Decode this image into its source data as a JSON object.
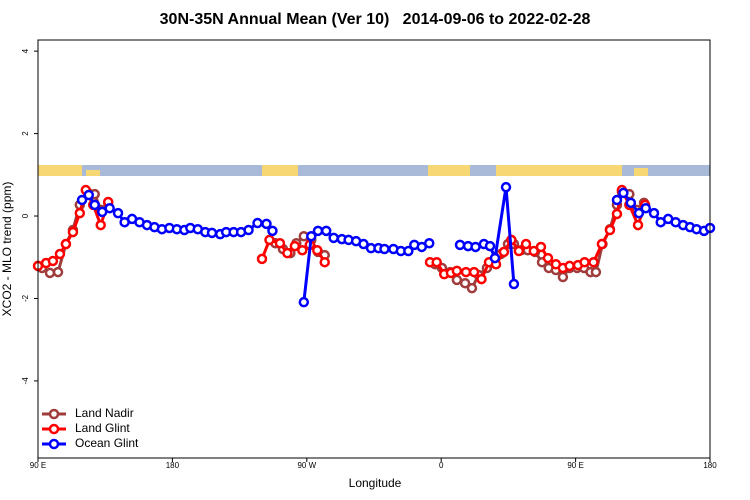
{
  "chart_data": {
    "type": "line",
    "title": "30N-35N Annual Mean (Ver 10)   2014-09-06 to 2022-02-28",
    "x_label": "Longitude",
    "y_label": "XCO2 - MLO trend (ppm)",
    "xlim": [
      90,
      540
    ],
    "xticks": [
      {
        "value": 90,
        "label": "90 E"
      },
      {
        "value": 180,
        "label": "180"
      },
      {
        "value": 270,
        "label": "90 W"
      },
      {
        "value": 360,
        "label": "0"
      },
      {
        "value": 450,
        "label": "90 E"
      },
      {
        "value": 540,
        "label": "180"
      }
    ],
    "ylim": [
      -5.87,
      4.27
    ],
    "yticks": [
      -4,
      -2,
      0,
      2,
      4
    ],
    "grid": false,
    "legend": "bottomleft",
    "series": [
      {
        "name": "Land Nadir",
        "color": "#a03c3c",
        "x": [
          92.7,
          98,
          103.4,
          108.7,
          113.4,
          118,
          123.5,
          128,
          132,
          137,
          null,
          249,
          254,
          259,
          263,
          268,
          273,
          277.5,
          282,
          null,
          356,
          360.5,
          366,
          370.5,
          376,
          380.6,
          385,
          390.6,
          394.7,
          400,
          404.7,
          408.7,
          413.4,
          418,
          422.8,
          427.5,
          432,
          436.8,
          441.5,
          446,
          451,
          455.6,
          460,
          463.6,
          468,
          473,
          477.7,
          481,
          486,
          491,
          495.8
        ],
        "values": [
          -1.26,
          -1.38,
          -1.36,
          -0.68,
          -0.34,
          0.27,
          0.56,
          0.53,
          0.15,
          0.32,
          null,
          -0.66,
          -0.8,
          -0.9,
          -0.66,
          -0.49,
          -0.58,
          -0.87,
          -0.95,
          null,
          -1.17,
          -1.26,
          -1.36,
          -1.55,
          -1.63,
          -1.75,
          -1.43,
          -1.26,
          -1.12,
          -0.92,
          -0.68,
          -0.68,
          -0.83,
          -0.83,
          -0.87,
          -1.12,
          -1.26,
          -1.31,
          -1.48,
          -1.26,
          -1.26,
          -1.26,
          -1.36,
          -1.36,
          -0.68,
          -0.32,
          0.27,
          0.58,
          0.53,
          0.15,
          0.32
        ]
      },
      {
        "name": "Land Glint",
        "color": "#ff0000",
        "x": [
          90,
          95.4,
          100,
          104.7,
          108.7,
          113.4,
          118,
          122,
          127,
          132,
          137,
          null,
          240,
          245,
          252,
          257,
          262,
          267,
          272,
          277,
          282,
          null,
          352.5,
          357,
          362,
          366.5,
          370.5,
          376.6,
          382,
          387,
          392,
          396.7,
          402,
          407,
          412,
          416.8,
          422,
          426.8,
          431.5,
          436.8,
          441.5,
          446,
          451.6,
          456,
          462,
          467.6,
          473,
          477.7,
          481,
          486,
          491.8,
          496.5
        ],
        "values": [
          -1.21,
          -1.14,
          -1.09,
          -0.92,
          -0.68,
          -0.39,
          0.07,
          0.63,
          0.27,
          -0.22,
          0.34,
          null,
          -1.04,
          -0.58,
          -0.66,
          -0.9,
          -0.73,
          -0.83,
          -0.7,
          -0.83,
          -1.12,
          null,
          -1.12,
          -1.12,
          -1.41,
          -1.38,
          -1.33,
          -1.36,
          -1.36,
          -1.53,
          -1.12,
          -1.17,
          -0.87,
          -0.58,
          -0.85,
          -0.68,
          -0.85,
          -0.75,
          -1.02,
          -1.17,
          -1.26,
          -1.21,
          -1.19,
          -1.12,
          -1.12,
          -0.68,
          -0.34,
          0.05,
          0.63,
          0.27,
          -0.22,
          0.27
        ]
      },
      {
        "name": "Ocean Glint",
        "color": "#0000ff",
        "x": [
          119.5,
          124,
          128,
          133,
          138,
          143.6,
          148,
          153,
          158,
          163,
          168,
          173,
          178,
          183,
          188,
          192,
          197,
          202,
          206.5,
          212,
          216,
          221,
          226,
          231,
          237,
          243,
          247,
          null,
          268,
          273,
          277.5,
          283,
          288,
          293.5,
          298,
          303,
          308,
          313,
          318,
          322,
          328,
          333,
          338,
          342,
          347,
          352,
          null,
          372.6,
          378,
          383,
          388.6,
          392.7,
          396,
          403.4,
          408.7,
          null,
          477.7,
          482,
          487,
          492.4,
          497,
          502.5,
          507,
          512,
          517,
          522,
          526.6,
          531,
          536,
          540
        ],
        "values": [
          0.39,
          0.51,
          0.27,
          0.1,
          0.19,
          0.07,
          -0.15,
          -0.07,
          -0.15,
          -0.22,
          -0.27,
          -0.32,
          -0.29,
          -0.32,
          -0.34,
          -0.29,
          -0.32,
          -0.39,
          -0.41,
          -0.44,
          -0.39,
          -0.39,
          -0.39,
          -0.34,
          -0.17,
          -0.19,
          -0.36,
          null,
          -2.09,
          -0.49,
          -0.36,
          -0.36,
          -0.53,
          -0.56,
          -0.58,
          -0.61,
          -0.68,
          -0.78,
          -0.78,
          -0.8,
          -0.8,
          -0.85,
          -0.85,
          -0.7,
          -0.75,
          -0.66,
          null,
          -0.7,
          -0.73,
          -0.75,
          -0.68,
          -0.73,
          -1.02,
          0.7,
          -1.65,
          null,
          0.39,
          0.56,
          0.32,
          0.07,
          0.19,
          0.07,
          -0.15,
          -0.07,
          -0.15,
          -0.22,
          -0.27,
          -0.32,
          -0.36,
          -0.29
        ]
      }
    ]
  }
}
